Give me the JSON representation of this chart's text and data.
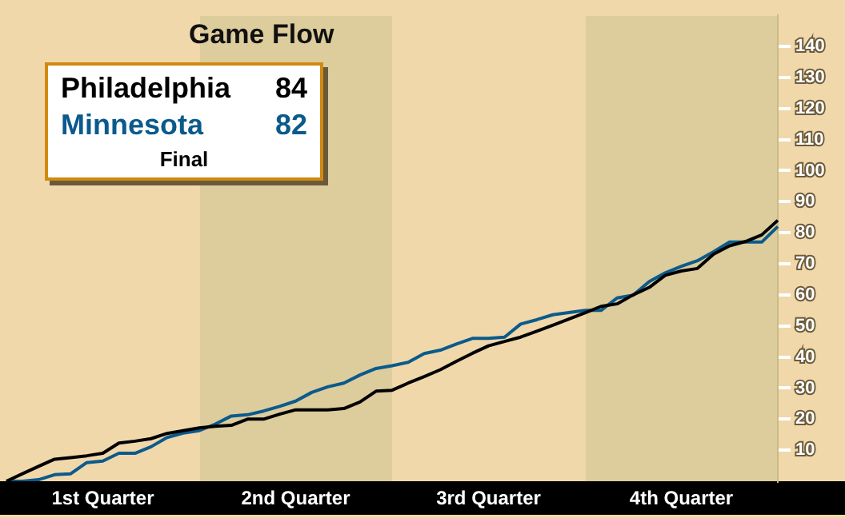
{
  "chart_data": {
    "type": "line",
    "title": "Game Flow",
    "categories": [
      null,
      null,
      null,
      null,
      null,
      null,
      "1st Quarter",
      null,
      null,
      null,
      null,
      null,
      null,
      null,
      null,
      null,
      null,
      null,
      "2nd Quarter",
      null,
      null,
      null,
      null,
      null,
      null,
      null,
      null,
      null,
      null,
      null,
      "3rd Quarter",
      null,
      null,
      null,
      null,
      null,
      null,
      null,
      null,
      null,
      null,
      null,
      "4th Quarter",
      null,
      null,
      null,
      null,
      null,
      null
    ],
    "ylim": [
      0,
      150
    ],
    "yticks": [
      10,
      20,
      30,
      40,
      50,
      60,
      70,
      80,
      90,
      100,
      110,
      120,
      130,
      140
    ],
    "series": [
      {
        "name": "Philadelphia",
        "color": "#000000",
        "values": [
          0,
          2.4,
          4.8,
          7.1,
          7.6,
          8.2,
          9,
          12.3,
          12.9,
          13.7,
          15.4,
          16.3,
          17.2,
          17.7,
          18,
          20,
          20,
          21.6,
          23,
          23,
          23,
          23.4,
          25.5,
          29,
          29.3,
          31.6,
          33.7,
          35.9,
          38.6,
          41.2,
          43.6,
          45,
          46.4,
          48.3,
          50.2,
          52.2,
          54.2,
          56.3,
          57.1,
          60,
          62.4,
          66.3,
          67.7,
          68.5,
          73.1,
          75.8,
          77.2,
          79.3,
          84
        ]
      },
      {
        "name": "Minnesota",
        "color": "#0b5a8c",
        "values": [
          0,
          0,
          0.5,
          2.1,
          2.4,
          6,
          6.5,
          9,
          9,
          11.1,
          14.1,
          15.5,
          16.3,
          18.4,
          21,
          21.4,
          22.6,
          24.1,
          25.8,
          28.6,
          30.4,
          31.6,
          34.2,
          36.3,
          37.2,
          38.3,
          41.1,
          42.2,
          44.2,
          46,
          46,
          46.4,
          50.6,
          52,
          53.6,
          54.3,
          55,
          55,
          59,
          59.9,
          64.3,
          67.1,
          69.2,
          71,
          73.9,
          77,
          77,
          77,
          82
        ]
      }
    ],
    "annotations": [
      "84",
      "82",
      "Final"
    ],
    "legend": "top left",
    "grid": false,
    "marker": "none",
    "line_style": "solid"
  }
}
